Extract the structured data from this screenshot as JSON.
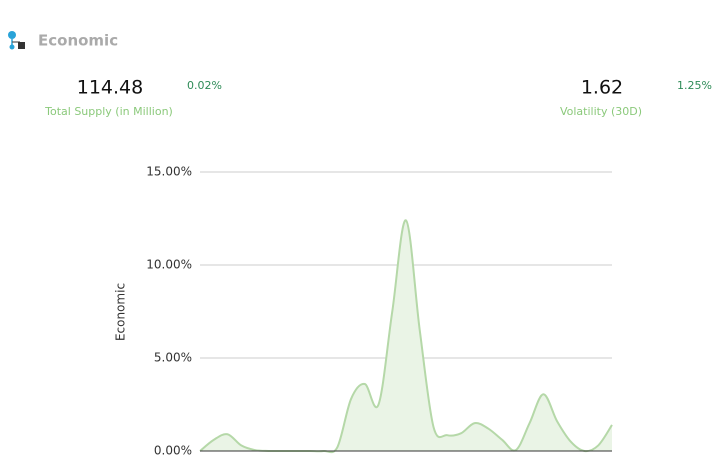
{
  "header": {
    "title": "Economic"
  },
  "stats": [
    {
      "value": "114.48",
      "label": "Total Supply (in Million)",
      "change": "0.02%"
    },
    {
      "value": "1.62",
      "label": "Volatility (30D)",
      "change": "1.25%"
    }
  ],
  "chart_data": {
    "type": "area",
    "y_label": "Economic",
    "categories": [
      null,
      null,
      null,
      null,
      null,
      null,
      null,
      null,
      null,
      null,
      null,
      null,
      null,
      null,
      null,
      null,
      null,
      null,
      null,
      null,
      null,
      null,
      null,
      null,
      null,
      null,
      null,
      null,
      null,
      null,
      null
    ],
    "series": [
      {
        "name": "Economic",
        "color": "#b5d8a8",
        "fill": "#eaf4e6",
        "values": [
          0,
          0.6,
          0.9,
          0.3,
          0.05,
          0,
          0,
          0,
          0,
          0,
          0.2,
          2.8,
          3.6,
          2.5,
          7.5,
          12.4,
          6.5,
          1.3,
          0.85,
          0.95,
          1.5,
          1.2,
          0.6,
          0.05,
          1.5,
          3.05,
          1.6,
          0.5,
          0,
          0.3,
          1.4
        ]
      }
    ],
    "ylim": [
      0,
      15
    ],
    "yticks": [
      {
        "value": 0,
        "label": "0.00%"
      },
      {
        "value": 5,
        "label": "5.00%"
      },
      {
        "value": 10,
        "label": "10.00%"
      },
      {
        "value": 15,
        "label": "15.00%"
      }
    ],
    "grid": true
  }
}
